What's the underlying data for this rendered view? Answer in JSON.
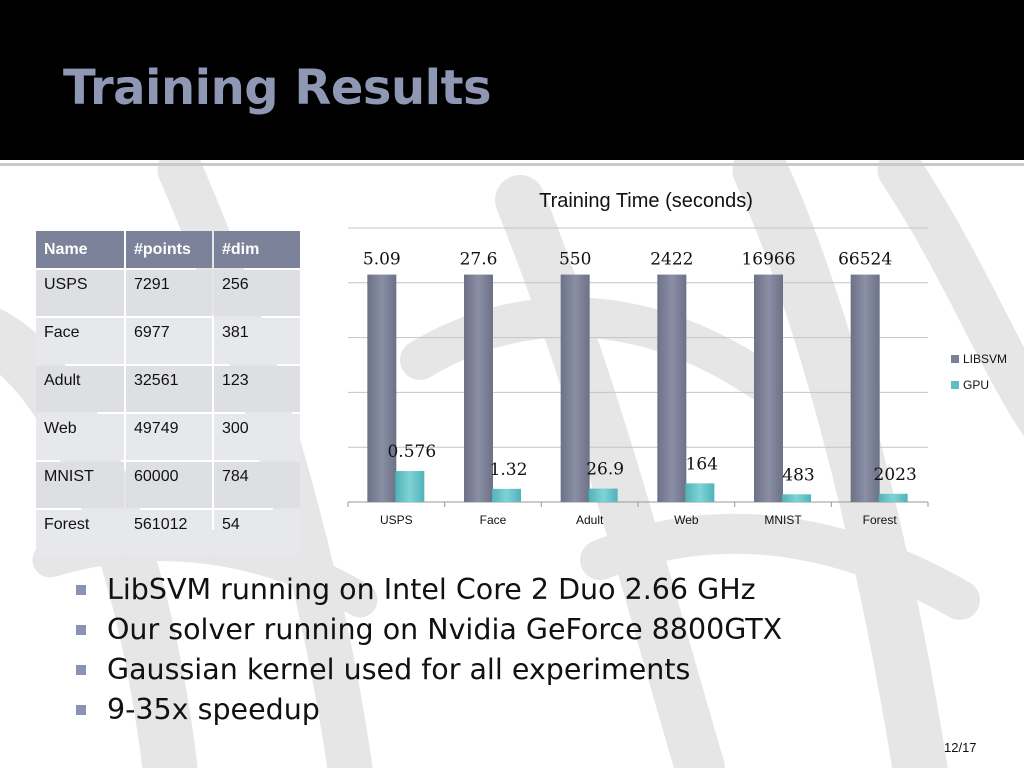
{
  "slide": {
    "title": "Training Results",
    "page_number": "12/17"
  },
  "table": {
    "headers": [
      "Name",
      "#points",
      "#dim"
    ],
    "rows": [
      [
        "USPS",
        "7291",
        "256"
      ],
      [
        "Face",
        "6977",
        "381"
      ],
      [
        "Adult",
        "32561",
        "123"
      ],
      [
        "Web",
        "49749",
        "300"
      ],
      [
        "MNIST",
        "60000",
        "784"
      ],
      [
        "Forest",
        "561012",
        "54"
      ]
    ]
  },
  "chart_data": {
    "type": "bar",
    "title": "Training Time (seconds)",
    "categories": [
      "USPS",
      "Face",
      "Adult",
      "Web",
      "MNIST",
      "Forest"
    ],
    "series": [
      {
        "name": "LIBSVM",
        "values": [
          5.09,
          27.6,
          550,
          2422,
          16966,
          66524
        ],
        "labels": [
          "5.09",
          "27.6",
          "550",
          "2422",
          "16966",
          "66524"
        ],
        "color": "#7b8096",
        "display_fraction": [
          1,
          1,
          1,
          1,
          1,
          1
        ]
      },
      {
        "name": "GPU",
        "values": [
          0.576,
          1.32,
          26.9,
          164,
          483,
          2023
        ],
        "labels": [
          "0.576",
          "1.32",
          "26.9",
          "164",
          "483",
          "2023"
        ],
        "color": "#5fbfc4",
        "display_fraction": [
          0.113,
          0.048,
          0.049,
          0.068,
          0.028,
          0.03
        ]
      }
    ],
    "xlabel": "",
    "ylabel": "",
    "grid": true,
    "legend": "right",
    "note": "bars are scaled per category (each LIBSVM bar full height)"
  },
  "bullets": [
    "LibSVM running on Intel Core 2 Duo 2.66 GHz",
    "Our solver running on Nvidia GeForce 8800GTX",
    "Gaussian kernel used for all experiments",
    "9-35x speedup"
  ],
  "colors": {
    "header_bg": "#000000",
    "title": "#8e97b4",
    "table_header": "#7c8299",
    "table_cell": "#dedfe3",
    "bullet": "#8a93b1"
  }
}
